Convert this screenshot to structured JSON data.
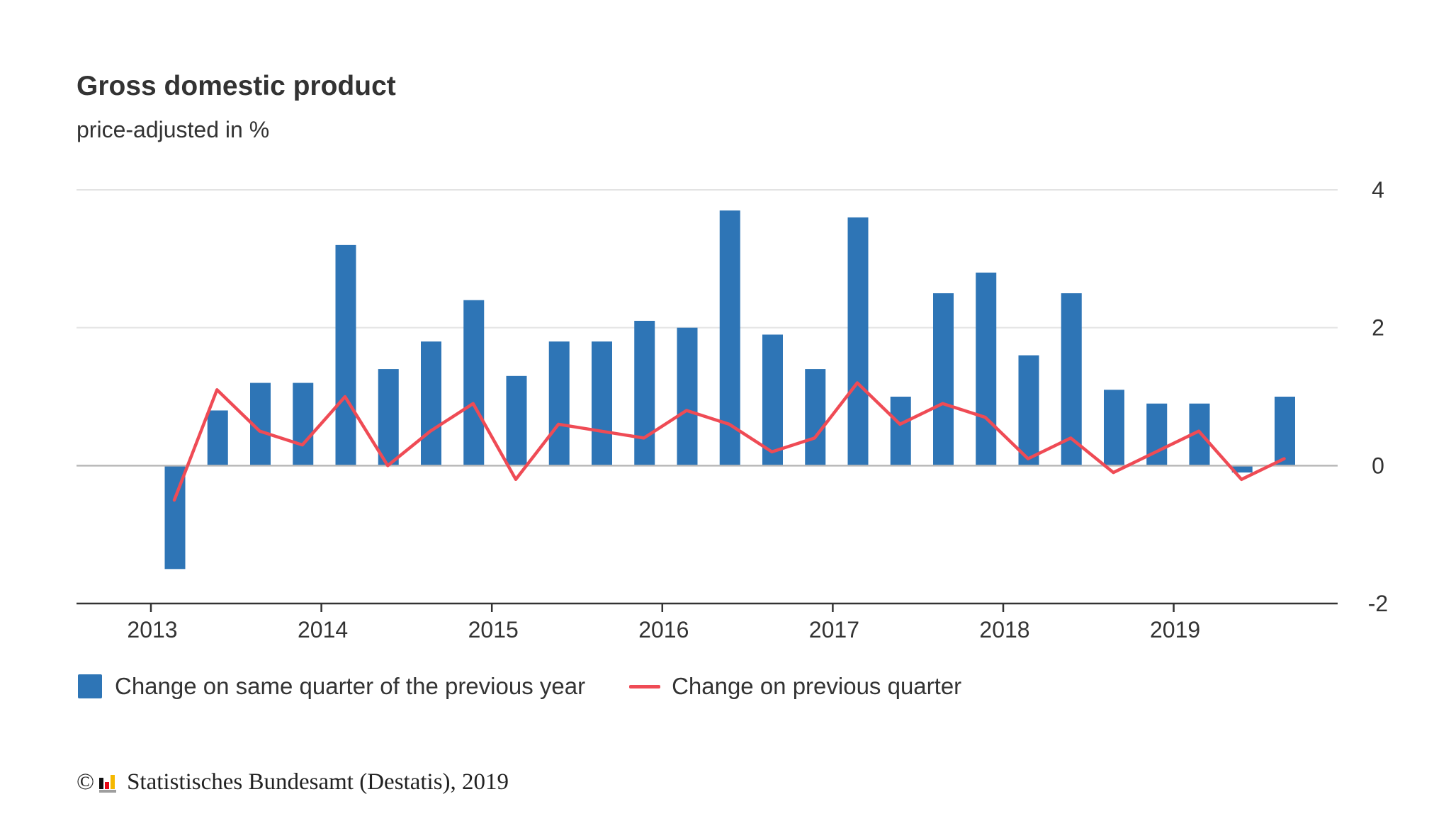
{
  "chart_data": {
    "type": "bar",
    "title": "Gross domestic product",
    "subtitle": "price-adjusted in %",
    "ylim": [
      -2,
      4
    ],
    "yticks": [
      4,
      2,
      0,
      -2
    ],
    "grid": true,
    "y_axis_side": "right",
    "x_tick_labels": [
      "2013",
      "2014",
      "2015",
      "2016",
      "2017",
      "2018",
      "2019"
    ],
    "categories": [
      "2013 Q1",
      "2013 Q2",
      "2013 Q3",
      "2013 Q4",
      "2014 Q1",
      "2014 Q2",
      "2014 Q3",
      "2014 Q4",
      "2015 Q1",
      "2015 Q2",
      "2015 Q3",
      "2015 Q4",
      "2016 Q1",
      "2016 Q2",
      "2016 Q3",
      "2016 Q4",
      "2017 Q1",
      "2017 Q2",
      "2017 Q3",
      "2017 Q4",
      "2018 Q1",
      "2018 Q2",
      "2018 Q3",
      "2018 Q4",
      "2019 Q1",
      "2019 Q2",
      "2019 Q3"
    ],
    "series": [
      {
        "name": "Change on same quarter of the previous year",
        "type": "bar",
        "color": "#2e75b6",
        "values": [
          -1.5,
          0.8,
          1.2,
          1.2,
          3.2,
          1.4,
          1.8,
          2.4,
          1.3,
          1.8,
          1.8,
          2.1,
          2.0,
          3.7,
          1.9,
          1.4,
          3.6,
          1.0,
          2.5,
          2.8,
          1.6,
          2.5,
          1.1,
          0.9,
          0.9,
          -0.1,
          1.0
        ]
      },
      {
        "name": "Change on previous quarter",
        "type": "line",
        "color": "#ef4b55",
        "values": [
          -0.5,
          1.1,
          0.5,
          0.3,
          1.0,
          0.0,
          0.5,
          0.9,
          -0.2,
          0.6,
          0.5,
          0.4,
          0.8,
          0.6,
          0.2,
          0.4,
          1.2,
          0.6,
          0.9,
          0.7,
          0.1,
          0.4,
          -0.1,
          0.2,
          0.5,
          -0.2,
          0.1
        ]
      }
    ],
    "legend_position": "bottom-left"
  },
  "credit": {
    "copyright_symbol": "©",
    "text": "Statistisches Bundesamt (Destatis), 2019"
  }
}
